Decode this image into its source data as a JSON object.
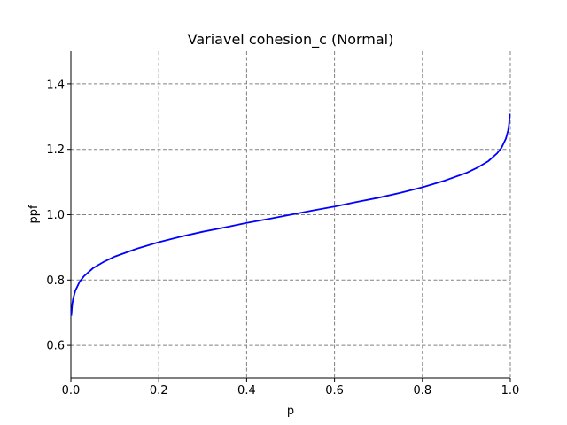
{
  "chart_data": {
    "type": "line",
    "title": "Variavel cohesion_c (Normal)",
    "xlabel": "p",
    "ylabel": "ppf",
    "xlim": [
      0,
      1
    ],
    "ylim": [
      0.5,
      1.5
    ],
    "x_ticks": [
      "0.0",
      "0.2",
      "0.4",
      "0.6",
      "0.8",
      "1.0"
    ],
    "y_ticks": [
      "0.6",
      "0.8",
      "1.0",
      "1.2",
      "1.4"
    ],
    "grid": true,
    "legend": "none",
    "series": [
      {
        "color": "#0000ff",
        "x": [
          0.001,
          0.003,
          0.005,
          0.01,
          0.02,
          0.03,
          0.05,
          0.075,
          0.1,
          0.15,
          0.2,
          0.25,
          0.3,
          0.35,
          0.4,
          0.45,
          0.5,
          0.55,
          0.6,
          0.65,
          0.7,
          0.75,
          0.8,
          0.85,
          0.9,
          0.925,
          0.95,
          0.97,
          0.98,
          0.99,
          0.995,
          0.997,
          0.999
        ],
        "y": [
          0.691,
          0.725,
          0.742,
          0.767,
          0.795,
          0.812,
          0.836,
          0.856,
          0.872,
          0.896,
          0.916,
          0.933,
          0.948,
          0.961,
          0.975,
          0.987,
          1.0,
          1.013,
          1.025,
          1.039,
          1.052,
          1.067,
          1.084,
          1.104,
          1.128,
          1.144,
          1.164,
          1.188,
          1.205,
          1.233,
          1.258,
          1.275,
          1.309
        ]
      }
    ]
  }
}
